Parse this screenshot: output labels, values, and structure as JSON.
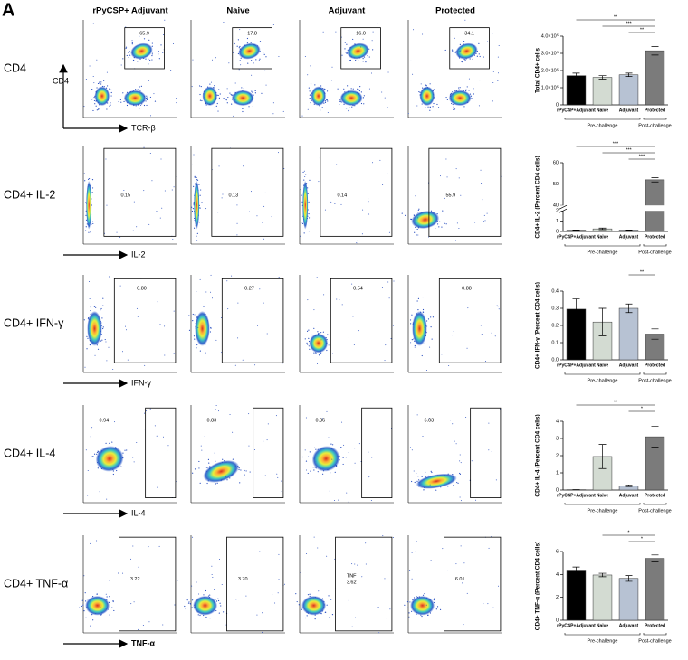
{
  "panel_label": "A",
  "columns": [
    "rPyCSP+ Adjuvant",
    "Naive",
    "Adjuvant",
    "Protected"
  ],
  "rows": [
    {
      "label": "CD4",
      "y_axis": "CD4",
      "x_axis": "TCR-β",
      "gates": [
        "65.9",
        "17.8",
        "16.0",
        "34.1"
      ]
    },
    {
      "label": "CD4+ IL-2",
      "x_axis": "IL-2",
      "gates": [
        "0.15",
        "0.13",
        "0.14",
        "55.9"
      ]
    },
    {
      "label": "CD4+ IFN-γ",
      "x_axis": "IFN-γ",
      "gates": [
        "0.80",
        "0.27",
        "0.54",
        "0.88"
      ]
    },
    {
      "label": "CD4+ IL-4",
      "x_axis": "IL-4",
      "gates": [
        "0.94",
        "0.83",
        "0.36",
        "6.03"
      ]
    },
    {
      "label": "CD4+ TNF-α",
      "x_axis": "TNF-α",
      "gates": [
        "3.22",
        "3.70",
        "TNF 3.62",
        "6.01"
      ]
    }
  ],
  "chart_data": [
    {
      "type": "bar",
      "y_label": "Total CD4+ cells",
      "categories": [
        "rPyCSP+Adjuvant",
        "Naive",
        "Adjuvant",
        "Protected"
      ],
      "values": [
        170000,
        160000,
        175000,
        315000
      ],
      "errors": [
        15000,
        10000,
        10000,
        25000
      ],
      "colors": [
        "#000000",
        "#d3dbd2",
        "#b7c2d3",
        "#7b7b7b"
      ],
      "ylim": [
        0,
        400000
      ],
      "yticks": [
        0,
        {
          "value": 100000,
          "label": "1.0×10⁵"
        },
        {
          "value": 200000,
          "label": "2.0×10⁵"
        },
        {
          "value": 300000,
          "label": "3.0×10⁵"
        },
        {
          "value": 400000,
          "label": "4.0×10⁵"
        }
      ],
      "groups": [
        {
          "label": "Pre-challenge",
          "span": 3
        },
        {
          "label": "Post-challenge",
          "span": 1
        }
      ],
      "significance": [
        {
          "from": 0,
          "to": 3,
          "label": "**"
        },
        {
          "from": 1,
          "to": 3,
          "label": "***"
        },
        {
          "from": 2,
          "to": 3,
          "label": "**"
        }
      ]
    },
    {
      "type": "bar",
      "y_label": "CD4+ IL-2 (Percent CD4 cells)",
      "categories": [
        "rPyCSP+Adjuvant",
        "Naive",
        "Adjuvant",
        "Protected"
      ],
      "values": [
        0.12,
        0.25,
        0.13,
        52
      ],
      "errors": [
        0.03,
        0.08,
        0.02,
        1
      ],
      "colors": [
        "#000000",
        "#d3dbd2",
        "#b7c2d3",
        "#7b7b7b"
      ],
      "ylim": [
        0,
        60
      ],
      "axis_break": [
        2,
        40
      ],
      "yticks": [
        0,
        1,
        2,
        40,
        50,
        60
      ],
      "groups": [
        {
          "label": "Pre-challenge",
          "span": 3
        },
        {
          "label": "Post-challenge",
          "span": 1
        }
      ],
      "significance": [
        {
          "from": 0,
          "to": 3,
          "label": "***"
        },
        {
          "from": 1,
          "to": 3,
          "label": "***"
        },
        {
          "from": 2,
          "to": 3,
          "label": "***"
        }
      ]
    },
    {
      "type": "bar",
      "y_label": "CD4+ IFN-γ (Percent CD4 cells)",
      "categories": [
        "rPyCSP+Adjuvant",
        "Naive",
        "Adjuvant",
        "Protected"
      ],
      "values": [
        0.295,
        0.22,
        0.3,
        0.15
      ],
      "errors": [
        0.06,
        0.08,
        0.025,
        0.03
      ],
      "colors": [
        "#000000",
        "#d3dbd2",
        "#b7c2d3",
        "#7b7b7b"
      ],
      "ylim": [
        0,
        0.4
      ],
      "yticks": [
        {
          "value": 0,
          "label": "0.0"
        },
        0.1,
        0.2,
        0.3,
        0.4
      ],
      "groups": [
        {
          "label": "Pre-challenge",
          "span": 3
        },
        {
          "label": "Post-challenge",
          "span": 1
        }
      ],
      "significance": [
        {
          "from": 2,
          "to": 3,
          "label": "**"
        }
      ]
    },
    {
      "type": "bar",
      "y_label": "CD4+ IL-4 (Percent CD4 cells)",
      "categories": [
        "rPyCSP+Adjuvant",
        "Naive",
        "Adjuvant",
        "Protected"
      ],
      "values": [
        0.02,
        1.95,
        0.25,
        3.1
      ],
      "errors": [
        0,
        0.7,
        0.05,
        0.6
      ],
      "colors": [
        "#000000",
        "#d3dbd2",
        "#b7c2d3",
        "#7b7b7b"
      ],
      "ylim": [
        0,
        4
      ],
      "yticks": [
        0,
        1,
        2,
        3,
        4
      ],
      "groups": [
        {
          "label": "Pre-challenge",
          "span": 3
        },
        {
          "label": "Post-challenge",
          "span": 1
        }
      ],
      "significance": [
        {
          "from": 0,
          "to": 3,
          "label": "**"
        },
        {
          "from": 2,
          "to": 3,
          "label": "*"
        }
      ]
    },
    {
      "type": "bar",
      "y_label": "CD4+ TNF-α (Percent CD4 cells)",
      "categories": [
        "rPyCSP+Adjuvant",
        "Naive",
        "Adjuvant",
        "Protected"
      ],
      "values": [
        4.3,
        3.95,
        3.65,
        5.4
      ],
      "errors": [
        0.35,
        0.15,
        0.25,
        0.3
      ],
      "colors": [
        "#000000",
        "#d3dbd2",
        "#b7c2d3",
        "#7b7b7b"
      ],
      "ylim": [
        0,
        6
      ],
      "yticks": [
        0,
        2,
        4,
        6
      ],
      "groups": [
        {
          "label": "Pre-challenge",
          "span": 3
        },
        {
          "label": "Post-challenge",
          "span": 1
        }
      ],
      "significance": [
        {
          "from": 1,
          "to": 3,
          "label": "*"
        },
        {
          "from": 2,
          "to": 3,
          "label": "*"
        }
      ]
    }
  ]
}
